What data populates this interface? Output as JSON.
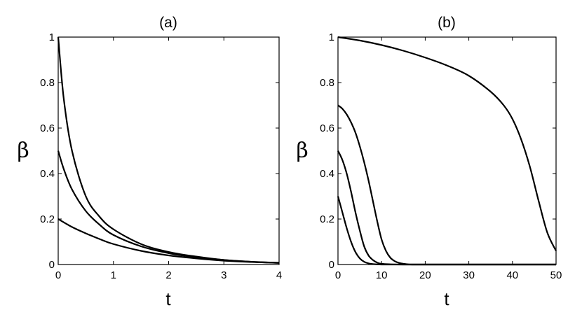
{
  "chart_data": [
    {
      "type": "line",
      "title": "(a)",
      "xlabel": "t",
      "ylabel": "β",
      "xlim": [
        0,
        4
      ],
      "ylim": [
        0,
        1
      ],
      "xticks": [
        "0",
        "1",
        "2",
        "3",
        "4"
      ],
      "yticks": [
        "0",
        "0.2",
        "0.4",
        "0.6",
        "0.8",
        "1"
      ],
      "grid": false,
      "series": [
        {
          "x": [
            0,
            0.1,
            0.25,
            0.5,
            0.75,
            1,
            1.5,
            2,
            2.5,
            3,
            3.5,
            4
          ],
          "y": [
            1.0,
            0.73,
            0.5,
            0.3,
            0.21,
            0.155,
            0.09,
            0.055,
            0.035,
            0.02,
            0.012,
            0.008
          ]
        },
        {
          "x": [
            0,
            0.1,
            0.25,
            0.5,
            0.75,
            1,
            1.5,
            2,
            2.5,
            3,
            3.5,
            4
          ],
          "y": [
            0.5,
            0.42,
            0.33,
            0.235,
            0.175,
            0.13,
            0.08,
            0.05,
            0.032,
            0.02,
            0.012,
            0.007
          ]
        },
        {
          "x": [
            0,
            0.25,
            0.5,
            0.75,
            1,
            1.5,
            2,
            2.5,
            3,
            3.5,
            4
          ],
          "y": [
            0.2,
            0.165,
            0.137,
            0.112,
            0.09,
            0.06,
            0.04,
            0.027,
            0.017,
            0.011,
            0.007
          ]
        }
      ]
    },
    {
      "type": "line",
      "title": "(b)",
      "xlabel": "t",
      "ylabel": "β",
      "xlim": [
        0,
        50
      ],
      "ylim": [
        0,
        1
      ],
      "xticks": [
        "0",
        "10",
        "20",
        "30",
        "40",
        "50"
      ],
      "yticks": [
        "0",
        "0.2",
        "0.4",
        "0.6",
        "0.8",
        "1"
      ],
      "grid": false,
      "series": [
        {
          "x": [
            0,
            5,
            10,
            15,
            20,
            25,
            30,
            35,
            38,
            40,
            42,
            44,
            46,
            48,
            50
          ],
          "y": [
            1.0,
            0.985,
            0.965,
            0.94,
            0.91,
            0.875,
            0.83,
            0.76,
            0.7,
            0.64,
            0.55,
            0.43,
            0.28,
            0.14,
            0.06
          ]
        },
        {
          "x": [
            0,
            1,
            2,
            3,
            4,
            5,
            6,
            7,
            8,
            9,
            10,
            11,
            12,
            13,
            14,
            15,
            16,
            17,
            18,
            20,
            30,
            40,
            50
          ],
          "y": [
            0.7,
            0.685,
            0.66,
            0.625,
            0.58,
            0.52,
            0.45,
            0.37,
            0.28,
            0.19,
            0.11,
            0.06,
            0.03,
            0.015,
            0.007,
            0.003,
            0.001,
            0.0,
            0.0,
            0.0,
            0.0,
            0.0,
            0.0
          ]
        },
        {
          "x": [
            0,
            1,
            2,
            3,
            4,
            5,
            6,
            7,
            8,
            9,
            10,
            12,
            15,
            20,
            30,
            40,
            50
          ],
          "y": [
            0.5,
            0.46,
            0.4,
            0.32,
            0.23,
            0.15,
            0.08,
            0.04,
            0.02,
            0.008,
            0.003,
            0.001,
            0.0,
            0.0,
            0.0,
            0.0,
            0.0
          ]
        },
        {
          "x": [
            0,
            1,
            2,
            3,
            4,
            5,
            6,
            7,
            8,
            10,
            15,
            20,
            30,
            40,
            50
          ],
          "y": [
            0.3,
            0.23,
            0.16,
            0.1,
            0.055,
            0.027,
            0.012,
            0.005,
            0.002,
            0.0,
            0.0,
            0.0,
            0.0,
            0.0,
            0.0
          ]
        }
      ]
    }
  ]
}
